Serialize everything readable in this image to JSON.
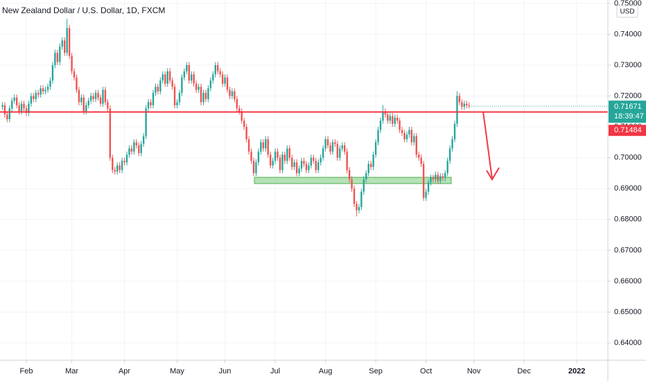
{
  "chart_data": {
    "type": "candlestick",
    "title": "New Zealand Dollar / U.S. Dollar, 1D, FXCM",
    "up_color": "#26a69a",
    "down_color": "#ef5350",
    "grid": true,
    "currency": "USD",
    "countdown": "18:39:47",
    "level": {
      "value": 0.71484,
      "color": "#f23645"
    },
    "xlim": [
      -1,
      253
    ],
    "xticks": [
      {
        "value": 10,
        "label": "Feb"
      },
      {
        "value": 29,
        "label": "Mar"
      },
      {
        "value": 51,
        "label": "Apr"
      },
      {
        "value": 73,
        "label": "May"
      },
      {
        "value": 93,
        "label": "Jun"
      },
      {
        "value": 114,
        "label": "Jul"
      },
      {
        "value": 135,
        "label": "Aug"
      },
      {
        "value": 156,
        "label": "Sep"
      },
      {
        "value": 177,
        "label": "Oct"
      },
      {
        "value": 197,
        "label": "Nov"
      },
      {
        "value": 218,
        "label": "Dec"
      },
      {
        "value": 240,
        "label": "2022"
      }
    ],
    "ylim": [
      0.6344,
      0.7511
    ],
    "yticks": [
      {
        "value": 0.64,
        "label": "0.64000"
      },
      {
        "value": 0.65,
        "label": "0.65000"
      },
      {
        "value": 0.66,
        "label": "0.66000"
      },
      {
        "value": 0.67,
        "label": "0.67000"
      },
      {
        "value": 0.68,
        "label": "0.68000"
      },
      {
        "value": 0.69,
        "label": "0.69000"
      },
      {
        "value": 0.7,
        "label": "0.70000"
      },
      {
        "value": 0.71,
        "label": "0.71000"
      },
      {
        "value": 0.72,
        "label": "0.72000"
      },
      {
        "value": 0.73,
        "label": "0.73000"
      },
      {
        "value": 0.74,
        "label": "0.74000"
      },
      {
        "value": 0.75,
        "label": "0.75000"
      }
    ],
    "open": [
      0.7165,
      0.717,
      0.714,
      0.7125,
      0.716,
      0.7185,
      0.7195,
      0.717,
      0.715,
      0.7175,
      0.716,
      0.7145,
      0.7175,
      0.72,
      0.719,
      0.721,
      0.7205,
      0.7225,
      0.7215,
      0.722,
      0.723,
      0.725,
      0.73,
      0.734,
      0.731,
      0.736,
      0.738,
      0.734,
      0.742,
      0.733,
      0.728,
      0.726,
      0.722,
      0.718,
      0.7195,
      0.715,
      0.717,
      0.7185,
      0.72,
      0.719,
      0.721,
      0.7195,
      0.7175,
      0.722,
      0.718,
      0.716,
      0.7,
      0.696,
      0.6955,
      0.6975,
      0.696,
      0.699,
      0.6985,
      0.701,
      0.703,
      0.702,
      0.705,
      0.704,
      0.7015,
      0.7045,
      0.707,
      0.716,
      0.718,
      0.717,
      0.721,
      0.723,
      0.7215,
      0.725,
      0.727,
      0.724,
      0.728,
      0.725,
      0.723,
      0.717,
      0.718,
      0.721,
      0.726,
      0.728,
      0.73,
      0.725,
      0.727,
      0.724,
      0.722,
      0.723,
      0.718,
      0.721,
      0.719,
      0.7225,
      0.725,
      0.727,
      0.73,
      0.728,
      0.727,
      0.724,
      0.726,
      0.722,
      0.72,
      0.7215,
      0.719,
      0.716,
      0.715,
      0.712,
      0.71,
      0.706,
      0.702,
      0.699,
      0.695,
      0.6985,
      0.702,
      0.705,
      0.703,
      0.706,
      0.701,
      0.6975,
      0.699,
      0.702,
      0.7,
      0.696,
      0.701,
      0.699,
      0.703,
      0.7,
      0.697,
      0.6985,
      0.695,
      0.6965,
      0.699,
      0.698,
      0.696,
      0.6975,
      0.7,
      0.699,
      0.696,
      0.6985,
      0.7,
      0.703,
      0.706,
      0.704,
      0.702,
      0.705,
      0.7045,
      0.7,
      0.703,
      0.704,
      0.702,
      0.696,
      0.693,
      0.69,
      0.685,
      0.683,
      0.684,
      0.689,
      0.693,
      0.695,
      0.698,
      0.697,
      0.701,
      0.705,
      0.709,
      0.712,
      0.715,
      0.714,
      0.712,
      0.7135,
      0.711,
      0.713,
      0.712,
      0.709,
      0.708,
      0.706,
      0.7075,
      0.709,
      0.705,
      0.707,
      0.701,
      0.7,
      0.698,
      0.687,
      0.689,
      0.692,
      0.6935,
      0.693,
      0.6945,
      0.6925,
      0.694,
      0.6935,
      0.695,
      0.699,
      0.703,
      0.706,
      0.711,
      0.72,
      0.718,
      0.7165,
      0.7175,
      0.717
    ],
    "high": [
      0.718,
      0.718,
      0.715,
      0.717,
      0.7195,
      0.7205,
      0.7205,
      0.718,
      0.7185,
      0.7185,
      0.717,
      0.7185,
      0.721,
      0.721,
      0.722,
      0.722,
      0.7235,
      0.7235,
      0.723,
      0.724,
      0.726,
      0.731,
      0.735,
      0.735,
      0.737,
      0.739,
      0.739,
      0.745,
      0.743,
      0.734,
      0.729,
      0.727,
      0.723,
      0.7205,
      0.7205,
      0.718,
      0.7195,
      0.721,
      0.721,
      0.722,
      0.722,
      0.7205,
      0.723,
      0.723,
      0.719,
      0.717,
      0.701,
      0.697,
      0.6985,
      0.6985,
      0.7,
      0.7,
      0.702,
      0.704,
      0.704,
      0.706,
      0.706,
      0.705,
      0.7055,
      0.708,
      0.717,
      0.719,
      0.719,
      0.722,
      0.724,
      0.724,
      0.726,
      0.728,
      0.728,
      0.729,
      0.729,
      0.726,
      0.724,
      0.719,
      0.722,
      0.727,
      0.729,
      0.731,
      0.731,
      0.728,
      0.728,
      0.725,
      0.724,
      0.724,
      0.722,
      0.722,
      0.7235,
      0.726,
      0.728,
      0.731,
      0.731,
      0.729,
      0.728,
      0.727,
      0.727,
      0.723,
      0.7225,
      0.7225,
      0.72,
      0.717,
      0.716,
      0.713,
      0.711,
      0.707,
      0.703,
      0.7,
      0.6995,
      0.703,
      0.706,
      0.706,
      0.707,
      0.707,
      0.702,
      0.7,
      0.703,
      0.703,
      0.701,
      0.702,
      0.702,
      0.704,
      0.704,
      0.701,
      0.6995,
      0.6995,
      0.6975,
      0.7,
      0.7,
      0.699,
      0.6985,
      0.701,
      0.701,
      0.7,
      0.6995,
      0.701,
      0.704,
      0.707,
      0.707,
      0.705,
      0.706,
      0.706,
      0.7055,
      0.704,
      0.705,
      0.705,
      0.703,
      0.697,
      0.694,
      0.691,
      0.686,
      0.685,
      0.69,
      0.694,
      0.696,
      0.699,
      0.699,
      0.702,
      0.706,
      0.71,
      0.713,
      0.717,
      0.716,
      0.715,
      0.7145,
      0.7145,
      0.714,
      0.714,
      0.713,
      0.71,
      0.709,
      0.7085,
      0.71,
      0.71,
      0.708,
      0.708,
      0.702,
      0.701,
      0.699,
      0.69,
      0.693,
      0.6945,
      0.6945,
      0.6955,
      0.6955,
      0.695,
      0.695,
      0.696,
      0.7,
      0.704,
      0.707,
      0.712,
      0.7215,
      0.721,
      0.719,
      0.7185,
      0.7185,
      0.718
    ],
    "low": [
      0.7155,
      0.713,
      0.7115,
      0.7115,
      0.715,
      0.7175,
      0.716,
      0.714,
      0.714,
      0.715,
      0.7135,
      0.7135,
      0.7165,
      0.718,
      0.718,
      0.7195,
      0.7195,
      0.7205,
      0.7205,
      0.721,
      0.722,
      0.724,
      0.729,
      0.73,
      0.73,
      0.735,
      0.733,
      0.733,
      0.732,
      0.727,
      0.725,
      0.721,
      0.717,
      0.717,
      0.714,
      0.714,
      0.716,
      0.7175,
      0.718,
      0.718,
      0.7185,
      0.7165,
      0.7165,
      0.717,
      0.715,
      0.699,
      0.695,
      0.6945,
      0.6945,
      0.695,
      0.695,
      0.6975,
      0.6975,
      0.7,
      0.701,
      0.701,
      0.703,
      0.7005,
      0.7005,
      0.7035,
      0.706,
      0.715,
      0.716,
      0.716,
      0.72,
      0.7205,
      0.7205,
      0.724,
      0.723,
      0.723,
      0.724,
      0.722,
      0.716,
      0.716,
      0.717,
      0.72,
      0.725,
      0.727,
      0.724,
      0.724,
      0.723,
      0.721,
      0.721,
      0.717,
      0.717,
      0.718,
      0.718,
      0.7215,
      0.724,
      0.726,
      0.727,
      0.726,
      0.723,
      0.723,
      0.721,
      0.719,
      0.719,
      0.718,
      0.715,
      0.714,
      0.711,
      0.709,
      0.705,
      0.701,
      0.698,
      0.694,
      0.694,
      0.6975,
      0.701,
      0.702,
      0.702,
      0.7,
      0.6965,
      0.6965,
      0.698,
      0.699,
      0.695,
      0.695,
      0.698,
      0.698,
      0.699,
      0.696,
      0.696,
      0.694,
      0.694,
      0.6955,
      0.697,
      0.695,
      0.695,
      0.6965,
      0.698,
      0.695,
      0.695,
      0.6975,
      0.699,
      0.702,
      0.703,
      0.701,
      0.701,
      0.7035,
      0.699,
      0.699,
      0.702,
      0.701,
      0.695,
      0.692,
      0.689,
      0.684,
      0.681,
      0.682,
      0.683,
      0.688,
      0.692,
      0.694,
      0.696,
      0.696,
      0.7,
      0.704,
      0.708,
      0.711,
      0.713,
      0.711,
      0.711,
      0.71,
      0.71,
      0.711,
      0.708,
      0.707,
      0.705,
      0.705,
      0.7065,
      0.704,
      0.704,
      0.7,
      0.699,
      0.697,
      0.686,
      0.686,
      0.688,
      0.691,
      0.692,
      0.692,
      0.6915,
      0.6915,
      0.6925,
      0.6925,
      0.694,
      0.698,
      0.702,
      0.705,
      0.71,
      0.717,
      0.7155,
      0.7155,
      0.716,
      0.716
    ],
    "close": [
      0.717,
      0.714,
      0.7125,
      0.716,
      0.7185,
      0.7195,
      0.717,
      0.715,
      0.7175,
      0.716,
      0.7145,
      0.7175,
      0.72,
      0.719,
      0.721,
      0.7205,
      0.7225,
      0.7215,
      0.722,
      0.723,
      0.725,
      0.73,
      0.734,
      0.731,
      0.736,
      0.738,
      0.734,
      0.742,
      0.733,
      0.728,
      0.726,
      0.722,
      0.718,
      0.7195,
      0.715,
      0.717,
      0.7185,
      0.72,
      0.719,
      0.721,
      0.7195,
      0.7175,
      0.722,
      0.718,
      0.716,
      0.7,
      0.696,
      0.6955,
      0.6975,
      0.696,
      0.699,
      0.6985,
      0.701,
      0.703,
      0.702,
      0.705,
      0.704,
      0.7015,
      0.7045,
      0.707,
      0.716,
      0.718,
      0.717,
      0.721,
      0.723,
      0.7215,
      0.725,
      0.727,
      0.724,
      0.728,
      0.725,
      0.723,
      0.717,
      0.718,
      0.721,
      0.726,
      0.728,
      0.73,
      0.725,
      0.727,
      0.724,
      0.722,
      0.723,
      0.718,
      0.721,
      0.719,
      0.7225,
      0.725,
      0.727,
      0.73,
      0.728,
      0.727,
      0.724,
      0.726,
      0.722,
      0.72,
      0.7215,
      0.719,
      0.716,
      0.715,
      0.712,
      0.71,
      0.706,
      0.702,
      0.699,
      0.695,
      0.6985,
      0.702,
      0.705,
      0.703,
      0.706,
      0.701,
      0.6975,
      0.699,
      0.702,
      0.7,
      0.696,
      0.701,
      0.699,
      0.703,
      0.7,
      0.697,
      0.6985,
      0.695,
      0.6965,
      0.699,
      0.698,
      0.696,
      0.6975,
      0.7,
      0.699,
      0.696,
      0.6985,
      0.7,
      0.703,
      0.706,
      0.704,
      0.702,
      0.705,
      0.7045,
      0.7,
      0.703,
      0.704,
      0.702,
      0.696,
      0.693,
      0.69,
      0.685,
      0.683,
      0.684,
      0.689,
      0.693,
      0.695,
      0.698,
      0.697,
      0.701,
      0.705,
      0.709,
      0.712,
      0.715,
      0.714,
      0.712,
      0.7135,
      0.711,
      0.713,
      0.712,
      0.709,
      0.708,
      0.706,
      0.7075,
      0.709,
      0.705,
      0.707,
      0.701,
      0.7,
      0.698,
      0.687,
      0.689,
      0.692,
      0.6935,
      0.693,
      0.6945,
      0.6925,
      0.694,
      0.6935,
      0.695,
      0.699,
      0.703,
      0.706,
      0.711,
      0.72,
      0.718,
      0.7165,
      0.7175,
      0.717,
      0.71671
    ]
  }
}
